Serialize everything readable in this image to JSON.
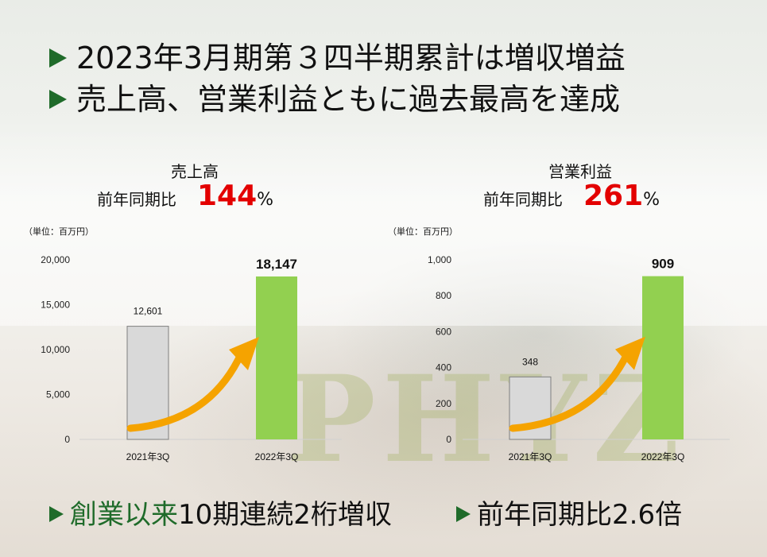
{
  "headline": {
    "line1": "2023年3月期第３四半期累計は増収増益",
    "line2": "売上高、営業利益ともに過去最高を達成"
  },
  "colors": {
    "accent": "#1f6b2a",
    "highlight_red": "#e30000",
    "bar_prev": "#d9d9d9",
    "bar_curr": "#92d050",
    "arrow": "#f5a300"
  },
  "chart_data": [
    {
      "type": "bar",
      "title": "売上高",
      "ratio_label": "前年同期比",
      "ratio_value": "144",
      "ratio_unit": "%",
      "unit": "（単位：百万円）",
      "categories": [
        "2021年3Q",
        "2022年3Q"
      ],
      "values": [
        12601,
        18147
      ],
      "value_labels": [
        "12,601",
        "18,147"
      ],
      "ylim": [
        0,
        20000
      ],
      "yticks": [
        "0",
        "5,000",
        "10,000",
        "15,000",
        "20,000"
      ]
    },
    {
      "type": "bar",
      "title": "営業利益",
      "ratio_label": "前年同期比",
      "ratio_value": "261",
      "ratio_unit": "%",
      "unit": "（単位：百万円）",
      "categories": [
        "2021年3Q",
        "2022年3Q"
      ],
      "values": [
        348,
        909
      ],
      "value_labels": [
        "348",
        "909"
      ],
      "ylim": [
        0,
        1000
      ],
      "yticks": [
        "0",
        "200",
        "400",
        "600",
        "800",
        "1,000"
      ]
    }
  ],
  "footer": {
    "left_green": "創業以来",
    "left_rest": "10期連続2桁増収",
    "right": "前年同期比2.6倍"
  },
  "watermark": "PHYZ"
}
